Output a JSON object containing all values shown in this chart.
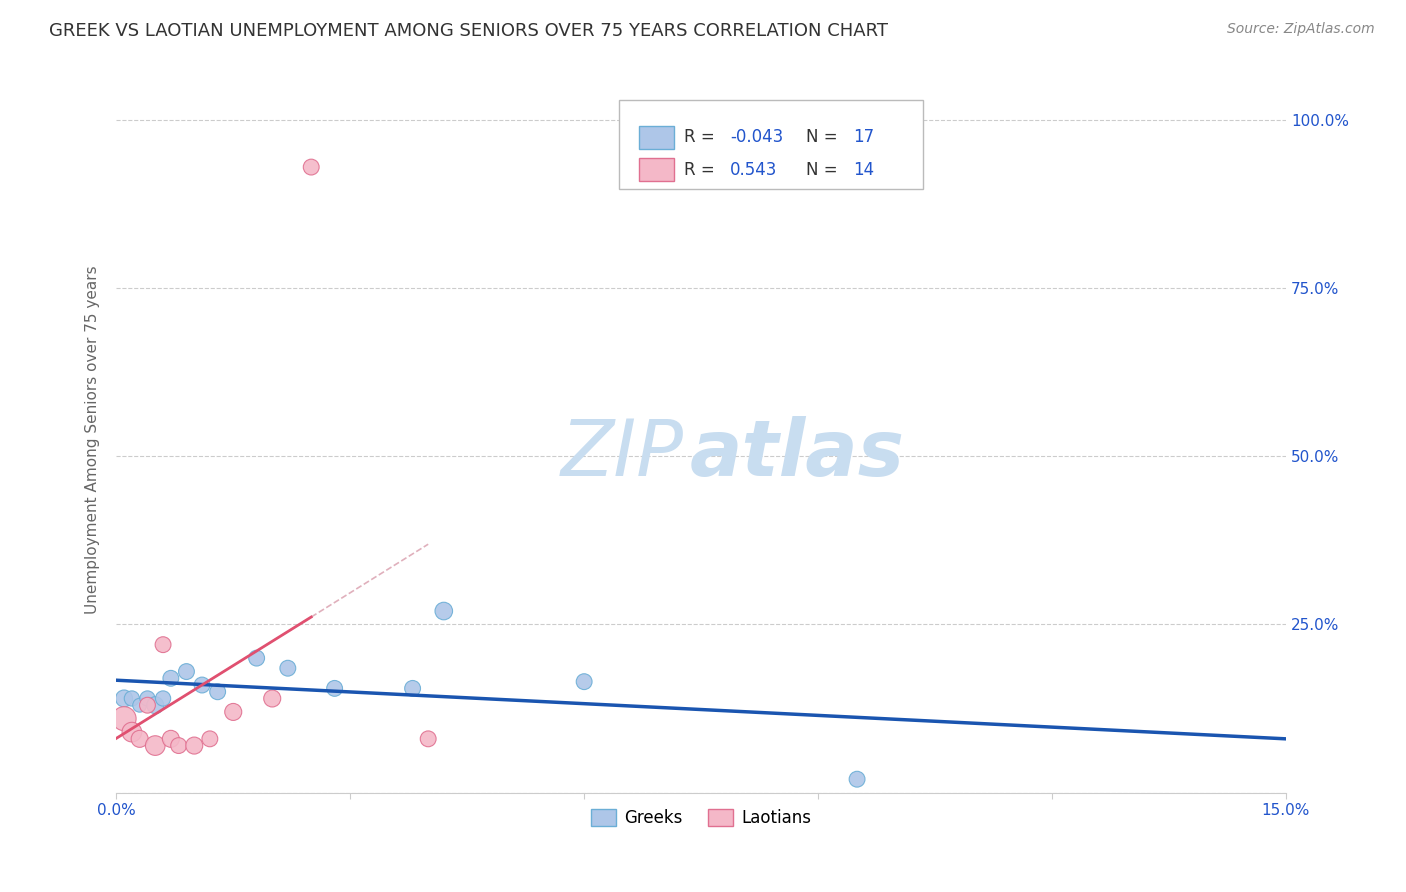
{
  "title": "GREEK VS LAOTIAN UNEMPLOYMENT AMONG SENIORS OVER 75 YEARS CORRELATION CHART",
  "source": "Source: ZipAtlas.com",
  "ylabel_label": "Unemployment Among Seniors over 75 years",
  "xlim": [
    0.0,
    0.15
  ],
  "ylim": [
    0.0,
    1.05
  ],
  "xticks": [
    0.0,
    0.03,
    0.06,
    0.09,
    0.12,
    0.15
  ],
  "xtick_labels": [
    "0.0%",
    "",
    "",
    "",
    "",
    "15.0%"
  ],
  "yticks": [
    0.0,
    0.25,
    0.5,
    0.75,
    1.0
  ],
  "ytick_labels": [
    "",
    "25.0%",
    "50.0%",
    "75.0%",
    "100.0%"
  ],
  "greek_scatter_x": [
    0.001,
    0.002,
    0.003,
    0.004,
    0.005,
    0.006,
    0.007,
    0.009,
    0.011,
    0.013,
    0.018,
    0.022,
    0.028,
    0.038,
    0.042,
    0.06,
    0.095
  ],
  "greek_scatter_y": [
    0.14,
    0.14,
    0.13,
    0.14,
    0.13,
    0.14,
    0.17,
    0.18,
    0.16,
    0.15,
    0.2,
    0.185,
    0.155,
    0.155,
    0.27,
    0.165,
    0.02
  ],
  "greek_sizes": [
    150,
    120,
    100,
    120,
    150,
    120,
    130,
    130,
    130,
    130,
    130,
    130,
    130,
    130,
    160,
    130,
    130
  ],
  "laotian_scatter_x": [
    0.001,
    0.002,
    0.003,
    0.004,
    0.005,
    0.006,
    0.007,
    0.008,
    0.01,
    0.012,
    0.015,
    0.02,
    0.025,
    0.04
  ],
  "laotian_scatter_y": [
    0.11,
    0.09,
    0.08,
    0.13,
    0.07,
    0.22,
    0.08,
    0.07,
    0.07,
    0.08,
    0.12,
    0.14,
    0.93,
    0.08
  ],
  "laotian_sizes": [
    300,
    200,
    150,
    130,
    200,
    130,
    150,
    130,
    150,
    130,
    150,
    150,
    130,
    130
  ],
  "greek_color": "#aec6e8",
  "greek_edge_color": "#6baed6",
  "laotian_color": "#f4b8c8",
  "laotian_edge_color": "#e07090",
  "greek_trend_color": "#1a55b0",
  "laotian_trend_solid_color": "#e05070",
  "laotian_trend_dashed_color": "#e0b0bc",
  "legend_R_greek": "-0.043",
  "legend_N_greek": "17",
  "legend_R_laotian": "0.543",
  "legend_N_laotian": "14",
  "watermark_zip": "ZIP",
  "watermark_atlas": "atlas",
  "watermark_zip_color": "#c8ddf0",
  "watermark_atlas_color": "#c8ddf0",
  "grid_color": "#cccccc",
  "background_color": "#ffffff",
  "title_color": "#333333",
  "axis_label_color": "#666666",
  "tick_color": "#2255cc",
  "source_color": "#888888"
}
